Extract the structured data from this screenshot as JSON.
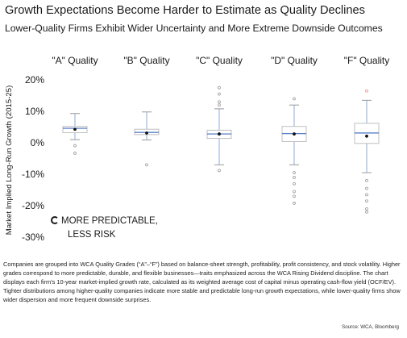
{
  "chart_data": {
    "type": "box",
    "title": "Growth Expectations Become Harder to Estimate as Quality Declines",
    "subtitle": "Lower-Quality Firms Exhibit Wider Uncertainty and More Extreme Downside Outcomes",
    "ylabel": "Market Implied Long-Run Growth (2015-25)",
    "ylim": [
      -30,
      20
    ],
    "yticks": [
      20,
      10,
      0,
      -10,
      -20,
      -30
    ],
    "ytick_labels": [
      "20%",
      "10%",
      "0%",
      "-10%",
      "-20%",
      "-30%"
    ],
    "categories": [
      "\"A\" Quality",
      "\"B\" Quality",
      "\"C\" Quality",
      "\"D\" Quality",
      "\"F\" Quality"
    ],
    "boxes": [
      {
        "whisker_low": 1.0,
        "q1": 3.2,
        "median": 4.6,
        "q3": 5.2,
        "whisker_high": 9.3,
        "mean": 4.3,
        "outliers": [
          -0.9,
          -3.3
        ]
      },
      {
        "whisker_low": 0.9,
        "q1": 2.6,
        "median": 3.3,
        "q3": 4.3,
        "whisker_high": 9.8,
        "mean": 3.1,
        "outliers": [
          -7.0
        ]
      },
      {
        "whisker_low": -7.0,
        "q1": 1.4,
        "median": 2.8,
        "q3": 4.0,
        "whisker_high": 10.8,
        "mean": 2.8,
        "outliers": [
          12.0,
          13.0,
          15.5,
          17.5,
          -8.8
        ]
      },
      {
        "whisker_low": -7.0,
        "q1": 0.4,
        "median": 2.9,
        "q3": 5.2,
        "whisker_high": 12.0,
        "mean": 2.8,
        "outliers": [
          14.0,
          -9.5,
          -11.0,
          -13.0,
          -15.5,
          -17.0,
          -19.2
        ]
      },
      {
        "whisker_low": -9.5,
        "q1": -0.2,
        "median": 3.1,
        "q3": 6.2,
        "whisker_high": 13.5,
        "mean": 2.1,
        "outliers": [
          16.5,
          -12.0,
          -14.5,
          -16.5,
          -18.5,
          -21.0,
          -22.0
        ]
      }
    ],
    "colors": {
      "box": "#bfbfbf",
      "median": "#4472c4",
      "whisker": "#8eaadb",
      "mean": "#111111",
      "outlier": "#a6a6a6",
      "outlier_high_f": "#e8a0a0"
    },
    "grid": false,
    "legend": "none",
    "note_line1": "MORE PREDICTABLE,",
    "note_line2": "LESS RISK"
  },
  "description": "Companies are grouped into WCA Quality Grades (“A”–“F”) based on balance-sheet strength, profitability, profit consistency, and stock volatility. Higher grades correspond to more predictable, durable, and flexible businesses—traits emphasized across the WCA Rising Dividend discipline. The chart displays each firm’s 10-year market-implied growth rate, calculated as its weighted average cost of capital minus operating cash-flow yield (OCF/EV). Tighter distributions among higher-quality companies indicate more stable and predictable long-run growth expectations, while lower-quality firms show wider dispersion and more frequent downside surprises.",
  "source": "Source: WCA, Bloomberg"
}
